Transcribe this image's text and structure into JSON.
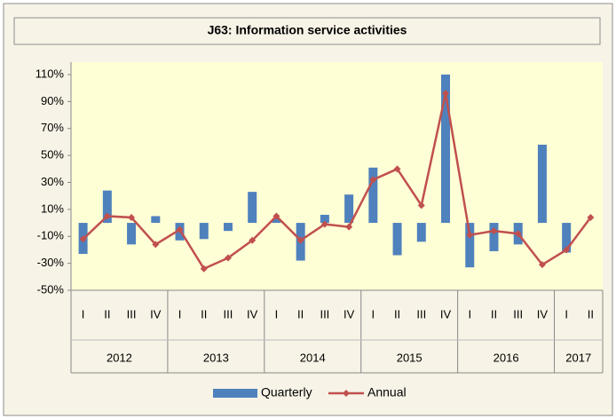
{
  "chart_data": {
    "type": "bar-line",
    "title": "J63: Information service activities",
    "category_groups": [
      {
        "label": "2012",
        "categories": [
          "I",
          "II",
          "III",
          "IV"
        ]
      },
      {
        "label": "2013",
        "categories": [
          "I",
          "II",
          "III",
          "IV"
        ]
      },
      {
        "label": "2014",
        "categories": [
          "I",
          "II",
          "III",
          "IV"
        ]
      },
      {
        "label": "2015",
        "categories": [
          "I",
          "II",
          "III",
          "IV"
        ]
      },
      {
        "label": "2016",
        "categories": [
          "I",
          "II",
          "III",
          "IV"
        ]
      },
      {
        "label": "2017",
        "categories": [
          "I",
          "II"
        ]
      }
    ],
    "series": [
      {
        "name": "Quarterly",
        "type": "bar",
        "color": "#4f81bd",
        "values": [
          -23,
          24,
          -16,
          5,
          -13,
          -12,
          -6,
          23,
          3,
          -28,
          6,
          21,
          41,
          -24,
          -14,
          110,
          -33,
          -21,
          -16,
          58,
          -22,
          null
        ]
      },
      {
        "name": "Annual",
        "type": "line",
        "color": "#c0504d",
        "values": [
          -12,
          5,
          4,
          -16,
          -5,
          -34,
          -26,
          -13,
          5,
          -13,
          -1,
          -3,
          32,
          40,
          13,
          96,
          -9,
          -6,
          -8,
          -31,
          -20,
          4
        ]
      }
    ],
    "ylim": [
      -50,
      110
    ],
    "yticks": [
      {
        "value": 110,
        "label": "110%"
      },
      {
        "value": 90,
        "label": "90%"
      },
      {
        "value": 70,
        "label": "70%"
      },
      {
        "value": 50,
        "label": "50%"
      },
      {
        "value": 30,
        "label": "30%"
      },
      {
        "value": 10,
        "label": "10%"
      },
      {
        "value": -10,
        "label": "-10%"
      },
      {
        "value": -30,
        "label": "-30%"
      },
      {
        "value": -50,
        "label": "-50%"
      }
    ],
    "grid": false,
    "legend": "bottom"
  }
}
